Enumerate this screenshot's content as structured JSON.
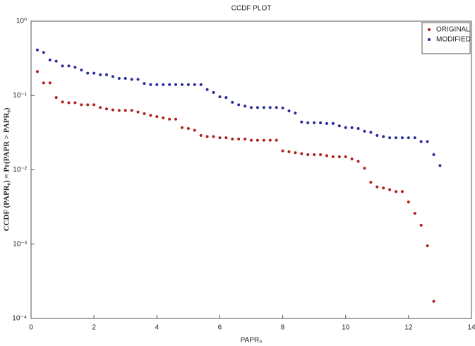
{
  "chart_data": {
    "type": "scatter",
    "title": "CCDF PLOT",
    "x_label": "PAPR₀",
    "y_label": "CCDF (PAPR₀) = Pr(PAPR > PAPR₀)",
    "xlim": [
      0,
      14
    ],
    "xticks": [
      0,
      2,
      4,
      6,
      8,
      10,
      12,
      14
    ],
    "ylim": [
      0.0001,
      1
    ],
    "log_y": true,
    "yticks": [
      {
        "value": 1,
        "label": "10⁰"
      },
      {
        "value": 0.1,
        "label": "10⁻¹"
      },
      {
        "value": 0.01,
        "label": "10⁻²"
      },
      {
        "value": 0.001,
        "label": "10⁻³"
      },
      {
        "value": 0.0001,
        "label": "10⁻⁴"
      }
    ],
    "legend": "upper right",
    "series": [
      {
        "name": "ORIGINAL",
        "color": "#b0201c",
        "x": [
          0.2,
          0.4,
          0.6,
          0.8,
          1.0,
          1.2,
          1.4,
          1.6,
          1.8,
          2.0,
          2.2,
          2.4,
          2.6,
          2.8,
          3.0,
          3.2,
          3.4,
          3.6,
          3.8,
          4.0,
          4.2,
          4.4,
          4.6,
          4.8,
          5.0,
          5.2,
          5.4,
          5.6,
          5.8,
          6.0,
          6.2,
          6.4,
          6.6,
          6.8,
          7.0,
          7.2,
          7.4,
          7.6,
          7.8,
          8.0,
          8.2,
          8.4,
          8.6,
          8.8,
          9.0,
          9.2,
          9.4,
          9.6,
          9.8,
          10.0,
          10.2,
          10.4,
          10.6,
          10.8,
          11.0,
          11.2,
          11.4,
          11.6,
          11.8,
          12.0,
          12.2,
          12.4,
          12.6,
          12.8
        ],
        "values": [
          0.21,
          0.148,
          0.148,
          0.094,
          0.082,
          0.08,
          0.08,
          0.075,
          0.075,
          0.075,
          0.069,
          0.066,
          0.064,
          0.063,
          0.063,
          0.063,
          0.06,
          0.057,
          0.054,
          0.052,
          0.05,
          0.048,
          0.048,
          0.037,
          0.036,
          0.034,
          0.029,
          0.028,
          0.028,
          0.027,
          0.027,
          0.026,
          0.026,
          0.026,
          0.025,
          0.025,
          0.025,
          0.025,
          0.025,
          0.018,
          0.0175,
          0.017,
          0.0165,
          0.016,
          0.016,
          0.016,
          0.0155,
          0.015,
          0.015,
          0.015,
          0.014,
          0.013,
          0.0105,
          0.0068,
          0.0059,
          0.0057,
          0.0054,
          0.0051,
          0.0051,
          0.0037,
          0.0026,
          0.0018,
          0.00095,
          0.00017
        ]
      },
      {
        "name": "MODIFIED",
        "color": "#2b2b9e",
        "x": [
          0.2,
          0.4,
          0.6,
          0.8,
          1.0,
          1.2,
          1.4,
          1.6,
          1.8,
          2.0,
          2.2,
          2.4,
          2.6,
          2.8,
          3.0,
          3.2,
          3.4,
          3.6,
          3.8,
          4.0,
          4.2,
          4.4,
          4.6,
          4.8,
          5.0,
          5.2,
          5.4,
          5.6,
          5.8,
          6.0,
          6.2,
          6.4,
          6.6,
          6.8,
          7.0,
          7.2,
          7.4,
          7.6,
          7.8,
          8.0,
          8.2,
          8.4,
          8.6,
          8.8,
          9.0,
          9.2,
          9.4,
          9.6,
          9.8,
          10.0,
          10.2,
          10.4,
          10.6,
          10.8,
          11.0,
          11.2,
          11.4,
          11.6,
          11.8,
          12.0,
          12.2,
          12.4,
          12.6,
          12.8,
          13.0
        ],
        "values": [
          0.41,
          0.38,
          0.3,
          0.29,
          0.25,
          0.25,
          0.24,
          0.22,
          0.2,
          0.2,
          0.19,
          0.19,
          0.18,
          0.17,
          0.17,
          0.165,
          0.165,
          0.145,
          0.14,
          0.14,
          0.14,
          0.14,
          0.14,
          0.14,
          0.14,
          0.14,
          0.14,
          0.12,
          0.11,
          0.096,
          0.094,
          0.081,
          0.075,
          0.072,
          0.069,
          0.069,
          0.069,
          0.069,
          0.069,
          0.068,
          0.062,
          0.058,
          0.044,
          0.043,
          0.043,
          0.043,
          0.042,
          0.042,
          0.039,
          0.037,
          0.037,
          0.036,
          0.033,
          0.032,
          0.029,
          0.028,
          0.027,
          0.027,
          0.027,
          0.027,
          0.027,
          0.024,
          0.024,
          0.016,
          0.0114
        ]
      }
    ]
  }
}
